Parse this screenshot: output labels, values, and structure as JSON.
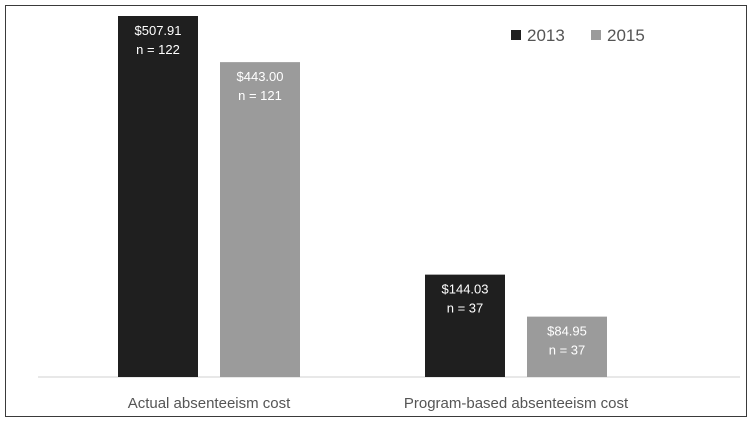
{
  "chart_data": {
    "type": "bar",
    "title": "",
    "xlabel": "",
    "ylabel": "",
    "ylim": [
      0,
      507.91
    ],
    "grid": false,
    "legend_position": "top-right",
    "categories": [
      "Actual absenteeism cost",
      "Program-based absenteeism cost"
    ],
    "series": [
      {
        "name": "2013",
        "color": "#1f1f1f",
        "values": [
          507.91,
          144.03
        ],
        "labels": [
          "$507.91",
          "$144.03"
        ],
        "n_labels": [
          "n = 122",
          "n = 37"
        ]
      },
      {
        "name": "2015",
        "color": "#9b9b9b",
        "values": [
          443.0,
          84.95
        ],
        "labels": [
          "$443.00",
          "$84.95"
        ],
        "n_labels": [
          "n = 121",
          "n = 37"
        ]
      }
    ]
  }
}
